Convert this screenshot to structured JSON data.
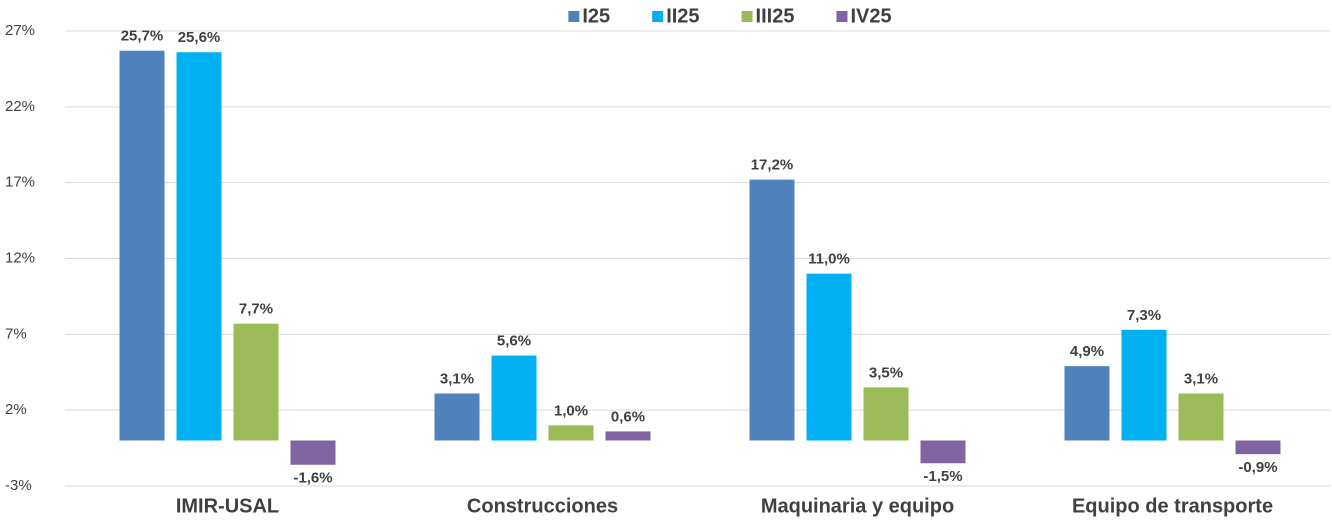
{
  "chart_data": {
    "type": "bar",
    "categories": [
      "IMIR-USAL",
      "Construcciones",
      "Maquinaria y equipo",
      "Equipo de transporte"
    ],
    "series": [
      {
        "name": "I25",
        "color": "#4f81bd",
        "values": [
          25.7,
          3.1,
          17.2,
          4.9
        ],
        "value_labels": [
          "25,7%",
          "3,1%",
          "17,2%",
          "4,9%"
        ]
      },
      {
        "name": "II25",
        "color": "#00b0f0",
        "values": [
          25.6,
          5.6,
          11.0,
          7.3
        ],
        "value_labels": [
          "25,6%",
          "5,6%",
          "11,0%",
          "7,3%"
        ]
      },
      {
        "name": "III25",
        "color": "#9bbb59",
        "values": [
          7.7,
          1.0,
          3.5,
          3.1
        ],
        "value_labels": [
          "7,7%",
          "1,0%",
          "3,5%",
          "3,1%"
        ]
      },
      {
        "name": "IV25",
        "color": "#8064a2",
        "values": [
          -1.6,
          0.6,
          -1.5,
          -0.9
        ],
        "value_labels": [
          "-1,6%",
          "0,6%",
          "-1,5%",
          "-0,9%"
        ]
      }
    ],
    "ylim": [
      -3,
      27
    ],
    "yticks": [
      {
        "value": -3,
        "label": "-3%"
      },
      {
        "value": 2,
        "label": "2%"
      },
      {
        "value": 7,
        "label": "7%"
      },
      {
        "value": 12,
        "label": "12%"
      },
      {
        "value": 17,
        "label": "17%"
      },
      {
        "value": 22,
        "label": "22%"
      },
      {
        "value": 27,
        "label": "27%"
      }
    ],
    "grid": true,
    "legend": "top"
  }
}
